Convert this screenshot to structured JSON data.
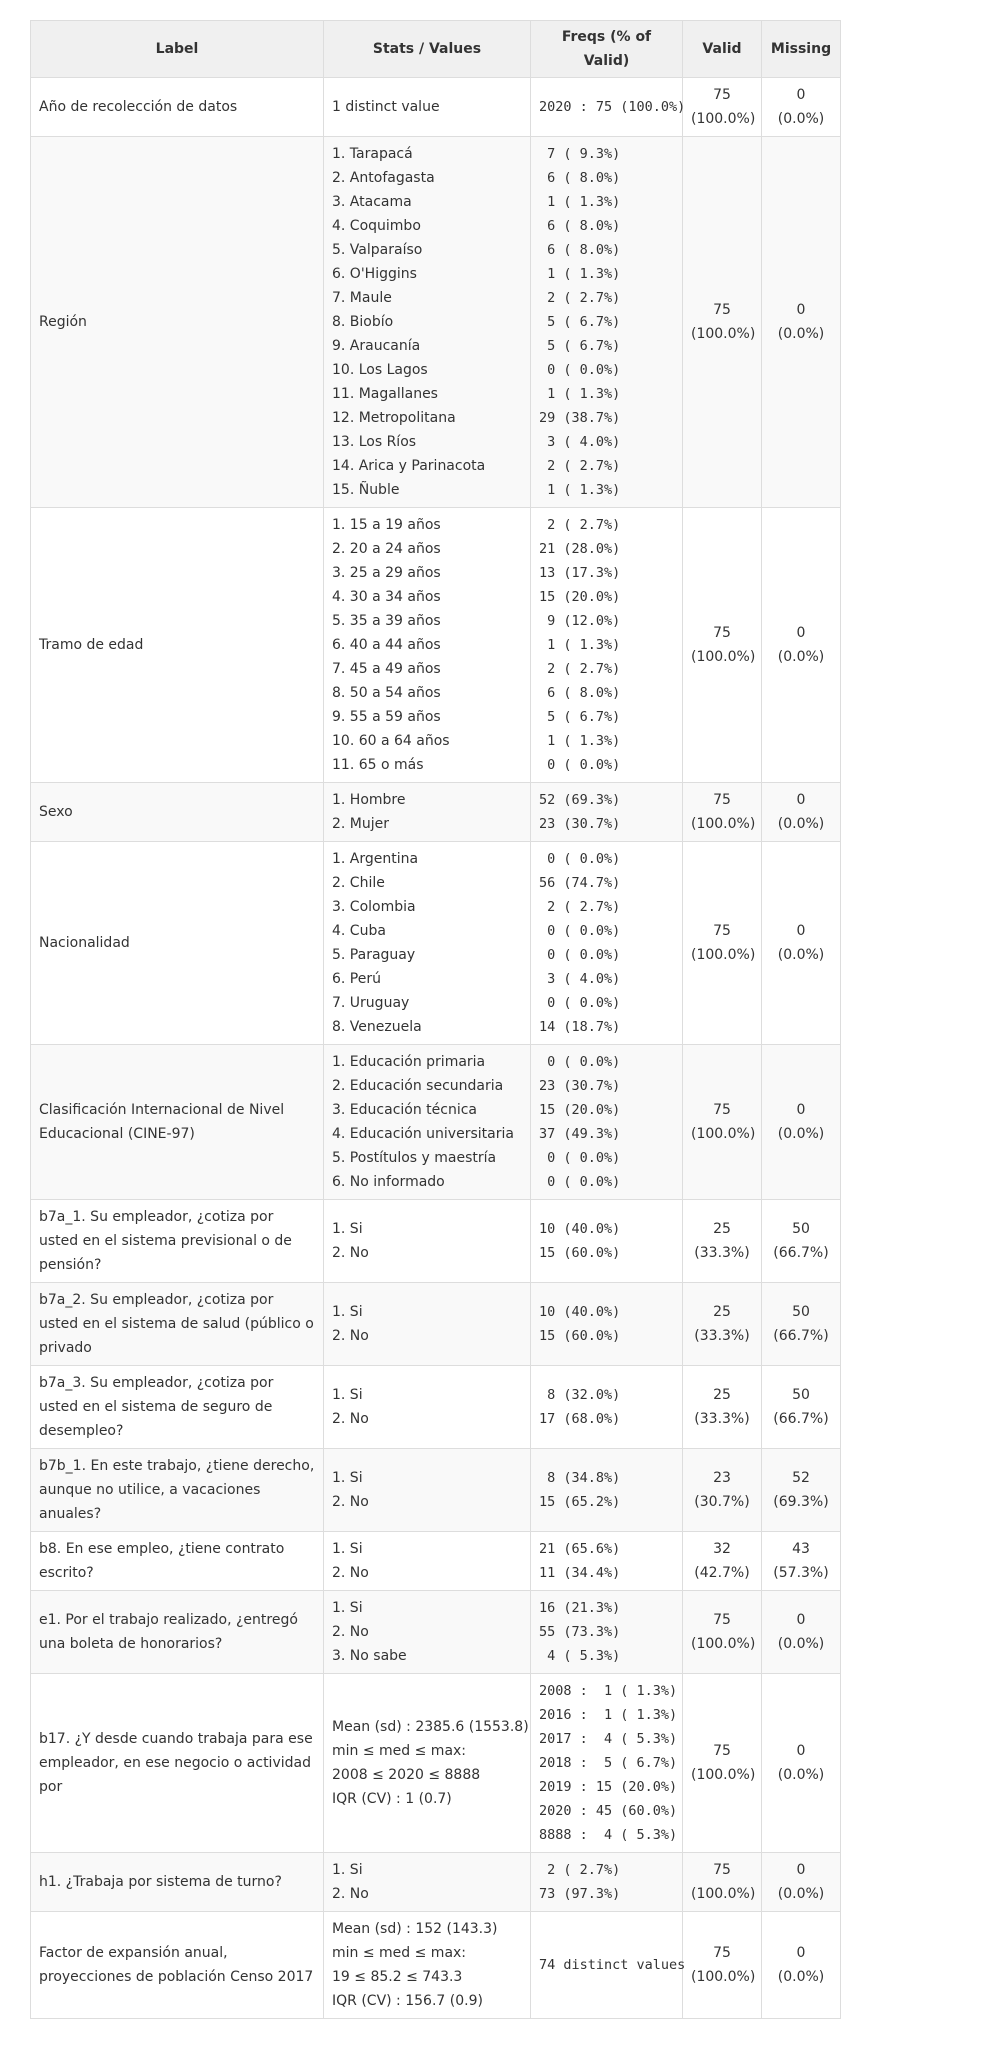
{
  "headers": {
    "label": "Label",
    "stats": "Stats / Values",
    "freqs": "Freqs (% of Valid)",
    "valid": "Valid",
    "missing": "Missing"
  },
  "rows": [
    {
      "label": "Año de recolección de datos",
      "stats": [
        "1 distinct value"
      ],
      "freqs": [
        "2020 : 75 (100.0%)"
      ],
      "valid": [
        "75",
        "(100.0%)"
      ],
      "missing": [
        "0",
        "(0.0%)"
      ]
    },
    {
      "label": "Región",
      "stats": [
        "1. Tarapacá",
        "2. Antofagasta",
        "3. Atacama",
        "4. Coquimbo",
        "5. Valparaíso",
        "6. O'Higgins",
        "7. Maule",
        "8. Biobío",
        "9. Araucanía",
        "10. Los Lagos",
        "11. Magallanes",
        "12. Metropolitana",
        "13. Los Ríos",
        "14. Arica y Parinacota",
        "15. Ñuble"
      ],
      "freqs": [
        " 7 ( 9.3%)",
        " 6 ( 8.0%)",
        " 1 ( 1.3%)",
        " 6 ( 8.0%)",
        " 6 ( 8.0%)",
        " 1 ( 1.3%)",
        " 2 ( 2.7%)",
        " 5 ( 6.7%)",
        " 5 ( 6.7%)",
        " 0 ( 0.0%)",
        " 1 ( 1.3%)",
        "29 (38.7%)",
        " 3 ( 4.0%)",
        " 2 ( 2.7%)",
        " 1 ( 1.3%)"
      ],
      "valid": [
        "75",
        "(100.0%)"
      ],
      "missing": [
        "0",
        "(0.0%)"
      ]
    },
    {
      "label": "Tramo de edad",
      "stats": [
        "1. 15 a 19 años",
        "2. 20 a 24 años",
        "3. 25 a 29 años",
        "4. 30 a 34 años",
        "5. 35 a 39 años",
        "6. 40 a 44 años",
        "7. 45 a 49 años",
        "8. 50 a 54 años",
        "9. 55 a 59 años",
        "10. 60 a 64 años",
        "11. 65 o más"
      ],
      "freqs": [
        " 2 ( 2.7%)",
        "21 (28.0%)",
        "13 (17.3%)",
        "15 (20.0%)",
        " 9 (12.0%)",
        " 1 ( 1.3%)",
        " 2 ( 2.7%)",
        " 6 ( 8.0%)",
        " 5 ( 6.7%)",
        " 1 ( 1.3%)",
        " 0 ( 0.0%)"
      ],
      "valid": [
        "75",
        "(100.0%)"
      ],
      "missing": [
        "0",
        "(0.0%)"
      ]
    },
    {
      "label": "Sexo",
      "stats": [
        "1. Hombre",
        "2. Mujer"
      ],
      "freqs": [
        "52 (69.3%)",
        "23 (30.7%)"
      ],
      "valid": [
        "75",
        "(100.0%)"
      ],
      "missing": [
        "0",
        "(0.0%)"
      ]
    },
    {
      "label": "Nacionalidad",
      "stats": [
        "1. Argentina",
        "2. Chile",
        "3. Colombia",
        "4. Cuba",
        "5. Paraguay",
        "6. Perú",
        "7. Uruguay",
        "8. Venezuela"
      ],
      "freqs": [
        " 0 ( 0.0%)",
        "56 (74.7%)",
        " 2 ( 2.7%)",
        " 0 ( 0.0%)",
        " 0 ( 0.0%)",
        " 3 ( 4.0%)",
        " 0 ( 0.0%)",
        "14 (18.7%)"
      ],
      "valid": [
        "75",
        "(100.0%)"
      ],
      "missing": [
        "0",
        "(0.0%)"
      ]
    },
    {
      "label": "Clasificación Internacional de Nivel Educacional (CINE-97)",
      "stats": [
        "1. Educación primaria",
        "2. Educación secundaria",
        "3. Educación técnica",
        "4. Educación universitaria",
        "5. Postítulos y maestría",
        "6. No informado"
      ],
      "freqs": [
        " 0 ( 0.0%)",
        "23 (30.7%)",
        "15 (20.0%)",
        "37 (49.3%)",
        " 0 ( 0.0%)",
        " 0 ( 0.0%)"
      ],
      "valid": [
        "75",
        "(100.0%)"
      ],
      "missing": [
        "0",
        "(0.0%)"
      ]
    },
    {
      "label": "b7a_1. Su empleador, ¿cotiza por usted en el sistema previsional o de pensión?",
      "stats": [
        "1. Si",
        "2. No"
      ],
      "freqs": [
        "10 (40.0%)",
        "15 (60.0%)"
      ],
      "valid": [
        "25",
        "(33.3%)"
      ],
      "missing": [
        "50",
        "(66.7%)"
      ]
    },
    {
      "label": "b7a_2. Su empleador, ¿cotiza por usted en el sistema de salud (público o privado",
      "stats": [
        "1. Si",
        "2. No"
      ],
      "freqs": [
        "10 (40.0%)",
        "15 (60.0%)"
      ],
      "valid": [
        "25",
        "(33.3%)"
      ],
      "missing": [
        "50",
        "(66.7%)"
      ]
    },
    {
      "label": "b7a_3. Su empleador, ¿cotiza por usted en el sistema de seguro de desempleo?",
      "stats": [
        "1. Si",
        "2. No"
      ],
      "freqs": [
        " 8 (32.0%)",
        "17 (68.0%)"
      ],
      "valid": [
        "25",
        "(33.3%)"
      ],
      "missing": [
        "50",
        "(66.7%)"
      ]
    },
    {
      "label": "b7b_1. En este trabajo, ¿tiene derecho, aunque no utilice, a vacaciones anuales?",
      "stats": [
        "1. Si",
        "2. No"
      ],
      "freqs": [
        " 8 (34.8%)",
        "15 (65.2%)"
      ],
      "valid": [
        "23",
        "(30.7%)"
      ],
      "missing": [
        "52",
        "(69.3%)"
      ]
    },
    {
      "label": "b8. En ese empleo, ¿tiene contrato escrito?",
      "stats": [
        "1. Si",
        "2. No"
      ],
      "freqs": [
        "21 (65.6%)",
        "11 (34.4%)"
      ],
      "valid": [
        "32",
        "(42.7%)"
      ],
      "missing": [
        "43",
        "(57.3%)"
      ]
    },
    {
      "label": "e1. Por el trabajo realizado, ¿entregó una boleta de honorarios?",
      "stats": [
        "1. Si",
        "2. No",
        "3. No sabe"
      ],
      "freqs": [
        "16 (21.3%)",
        "55 (73.3%)",
        " 4 ( 5.3%)"
      ],
      "valid": [
        "75",
        "(100.0%)"
      ],
      "missing": [
        "0",
        "(0.0%)"
      ]
    },
    {
      "label": "b17. ¿Y desde cuando trabaja para ese empleador, en ese negocio o actividad por",
      "stats": [
        "Mean (sd) : 2385.6 (1553.8)",
        "min ≤ med ≤ max:",
        "2008 ≤ 2020 ≤ 8888",
        "IQR (CV) : 1 (0.7)"
      ],
      "freqs": [
        "2008 :  1 ( 1.3%)",
        "2016 :  1 ( 1.3%)",
        "2017 :  4 ( 5.3%)",
        "2018 :  5 ( 6.7%)",
        "2019 : 15 (20.0%)",
        "2020 : 45 (60.0%)",
        "8888 :  4 ( 5.3%)"
      ],
      "valid": [
        "75",
        "(100.0%)"
      ],
      "missing": [
        "0",
        "(0.0%)"
      ]
    },
    {
      "label": "h1. ¿Trabaja por sistema de turno?",
      "stats": [
        "1. Si",
        "2. No"
      ],
      "freqs": [
        " 2 ( 2.7%)",
        "73 (97.3%)"
      ],
      "valid": [
        "75",
        "(100.0%)"
      ],
      "missing": [
        "0",
        "(0.0%)"
      ]
    },
    {
      "label": "Factor de expansión anual, proyecciones de población Censo 2017",
      "stats": [
        "Mean (sd) : 152 (143.3)",
        "min ≤ med ≤ max:",
        "19 ≤ 85.2 ≤ 743.3",
        "IQR (CV) : 156.7 (0.9)"
      ],
      "freqs": [
        "74 distinct values"
      ],
      "valid": [
        "75",
        "(100.0%)"
      ],
      "missing": [
        "0",
        "(0.0%)"
      ]
    }
  ]
}
